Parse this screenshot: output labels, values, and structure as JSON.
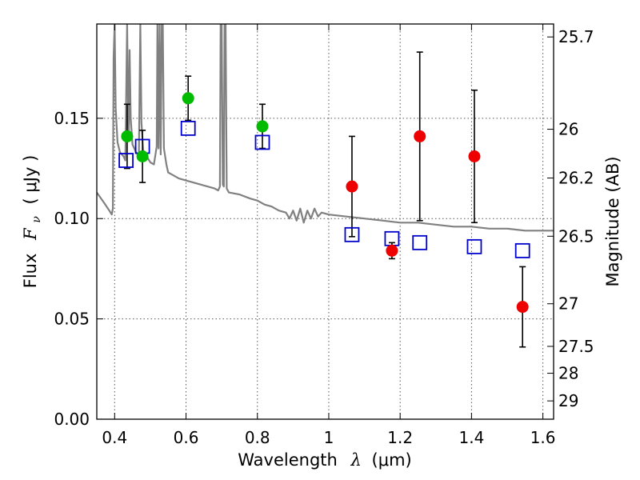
{
  "chart_data": {
    "type": "scatter",
    "xlabel_text": "Wavelength",
    "xlabel_symbol": "λ",
    "xlabel_unit": "(μm)",
    "ylabel_text": "Flux",
    "ylabel_symbol": "F",
    "ylabel_sub": "ν",
    "ylabel_unit": "( μJy )",
    "y2label": "Magnitude (AB)",
    "xlim": [
      0.35,
      1.63
    ],
    "ylim": [
      0.0,
      0.197
    ],
    "grid": true,
    "x_ticks": [
      {
        "value": 0.4,
        "label": "0.4"
      },
      {
        "value": 0.6,
        "label": "0.6"
      },
      {
        "value": 0.8,
        "label": "0.8"
      },
      {
        "value": 1.0,
        "label": "1"
      },
      {
        "value": 1.2,
        "label": "1.2"
      },
      {
        "value": 1.4,
        "label": "1.4"
      },
      {
        "value": 1.6,
        "label": "1.6"
      }
    ],
    "y_ticks": [
      {
        "value": 0.0,
        "label": "0.00"
      },
      {
        "value": 0.05,
        "label": "0.05"
      },
      {
        "value": 0.1,
        "label": "0.10"
      },
      {
        "value": 0.15,
        "label": "0.15"
      }
    ],
    "y2_ticks": [
      {
        "value": 25.7,
        "label": "25.7"
      },
      {
        "value": 26.0,
        "label": "26"
      },
      {
        "value": 26.2,
        "label": "26.2"
      },
      {
        "value": 26.5,
        "label": "26.5"
      },
      {
        "value": 27.0,
        "label": "27"
      },
      {
        "value": 27.5,
        "label": "27.5"
      },
      {
        "value": 28.0,
        "label": "28"
      },
      {
        "value": 29.0,
        "label": "29"
      }
    ],
    "colors": {
      "green": "#00bb00",
      "red": "#ee0000",
      "blue": "#0000cc",
      "template": "#808080",
      "errorbar": "#000000"
    },
    "series": [
      {
        "marker": "green-circle",
        "points": [
          {
            "x": 0.435,
            "y": 0.141,
            "yerr": 0.016
          },
          {
            "x": 0.478,
            "y": 0.131,
            "yerr": 0.013
          },
          {
            "x": 0.606,
            "y": 0.16,
            "yerr": 0.011
          },
          {
            "x": 0.814,
            "y": 0.146,
            "yerr": 0.011
          }
        ]
      },
      {
        "marker": "red-circle",
        "points": [
          {
            "x": 1.065,
            "y": 0.116,
            "yerr": 0.025
          },
          {
            "x": 1.177,
            "y": 0.084,
            "yerr": 0.004
          },
          {
            "x": 1.255,
            "y": 0.141,
            "yerr": 0.042
          },
          {
            "x": 1.408,
            "y": 0.131,
            "yerr": 0.033
          },
          {
            "x": 1.543,
            "y": 0.056,
            "yerr": 0.02
          }
        ]
      },
      {
        "marker": "blue-square",
        "points": [
          {
            "x": 0.432,
            "y": 0.129
          },
          {
            "x": 0.478,
            "y": 0.136
          },
          {
            "x": 0.606,
            "y": 0.145
          },
          {
            "x": 0.814,
            "y": 0.138
          },
          {
            "x": 1.065,
            "y": 0.092
          },
          {
            "x": 1.177,
            "y": 0.09
          },
          {
            "x": 1.255,
            "y": 0.088
          },
          {
            "x": 1.408,
            "y": 0.086
          },
          {
            "x": 1.543,
            "y": 0.084
          }
        ]
      },
      {
        "marker": "template-line",
        "points": [
          [
            0.35,
            0.113
          ],
          [
            0.37,
            0.108
          ],
          [
            0.385,
            0.104
          ],
          [
            0.392,
            0.102
          ],
          [
            0.395,
            0.105
          ],
          [
            0.397,
            0.18
          ],
          [
            0.4,
            0.197
          ],
          [
            0.403,
            0.155
          ],
          [
            0.408,
            0.138
          ],
          [
            0.415,
            0.133
          ],
          [
            0.425,
            0.131
          ],
          [
            0.43,
            0.129
          ],
          [
            0.435,
            0.197
          ],
          [
            0.438,
            0.15
          ],
          [
            0.44,
            0.142
          ],
          [
            0.442,
            0.184
          ],
          [
            0.445,
            0.15
          ],
          [
            0.45,
            0.137
          ],
          [
            0.46,
            0.133
          ],
          [
            0.468,
            0.131
          ],
          [
            0.472,
            0.197
          ],
          [
            0.475,
            0.148
          ],
          [
            0.48,
            0.134
          ],
          [
            0.49,
            0.131
          ],
          [
            0.5,
            0.128
          ],
          [
            0.51,
            0.127
          ],
          [
            0.518,
            0.136
          ],
          [
            0.52,
            0.197
          ],
          [
            0.523,
            0.135
          ],
          [
            0.526,
            0.197
          ],
          [
            0.529,
            0.132
          ],
          [
            0.532,
            0.197
          ],
          [
            0.535,
            0.197
          ],
          [
            0.538,
            0.135
          ],
          [
            0.545,
            0.127
          ],
          [
            0.55,
            0.123
          ],
          [
            0.56,
            0.122
          ],
          [
            0.58,
            0.12
          ],
          [
            0.6,
            0.119
          ],
          [
            0.62,
            0.118
          ],
          [
            0.64,
            0.117
          ],
          [
            0.66,
            0.116
          ],
          [
            0.68,
            0.115
          ],
          [
            0.69,
            0.114
          ],
          [
            0.695,
            0.116
          ],
          [
            0.697,
            0.197
          ],
          [
            0.7,
            0.197
          ],
          [
            0.703,
            0.117
          ],
          [
            0.706,
            0.116
          ],
          [
            0.708,
            0.197
          ],
          [
            0.711,
            0.197
          ],
          [
            0.714,
            0.115
          ],
          [
            0.72,
            0.113
          ],
          [
            0.75,
            0.112
          ],
          [
            0.78,
            0.11
          ],
          [
            0.8,
            0.109
          ],
          [
            0.82,
            0.107
          ],
          [
            0.84,
            0.106
          ],
          [
            0.86,
            0.104
          ],
          [
            0.88,
            0.103
          ],
          [
            0.89,
            0.1
          ],
          [
            0.9,
            0.104
          ],
          [
            0.91,
            0.099
          ],
          [
            0.92,
            0.105
          ],
          [
            0.93,
            0.098
          ],
          [
            0.94,
            0.104
          ],
          [
            0.95,
            0.1
          ],
          [
            0.96,
            0.105
          ],
          [
            0.97,
            0.101
          ],
          [
            0.98,
            0.103
          ],
          [
            1.0,
            0.102
          ],
          [
            1.05,
            0.101
          ],
          [
            1.1,
            0.1
          ],
          [
            1.15,
            0.099
          ],
          [
            1.2,
            0.098
          ],
          [
            1.25,
            0.098
          ],
          [
            1.3,
            0.097
          ],
          [
            1.35,
            0.096
          ],
          [
            1.4,
            0.096
          ],
          [
            1.45,
            0.095
          ],
          [
            1.5,
            0.095
          ],
          [
            1.55,
            0.094
          ],
          [
            1.6,
            0.094
          ],
          [
            1.63,
            0.094
          ]
        ]
      }
    ]
  }
}
